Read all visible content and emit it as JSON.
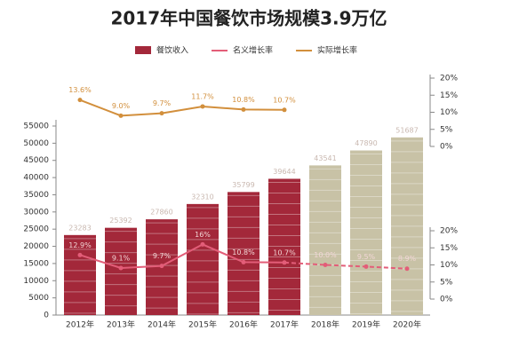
{
  "chart_data": {
    "type": "bar",
    "title": "2017年中国餐饮市场规模3.9万亿",
    "categories": [
      "2012年",
      "2013年",
      "2014年",
      "2015年",
      "2016年",
      "2017年",
      "2018年",
      "2019年",
      "2020年"
    ],
    "series": [
      {
        "name": "餐饮收入",
        "type": "bar",
        "axis": "y",
        "color": "#a3283a",
        "colors": [
          "#a3283a",
          "#a3283a",
          "#a3283a",
          "#a3283a",
          "#a3283a",
          "#a3283a",
          "#c8c2a6",
          "#c8c2a6",
          "#c8c2a6"
        ],
        "values": [
          23283,
          25392,
          27860,
          32310,
          35799,
          39644,
          43541,
          47890,
          51687
        ]
      },
      {
        "name": "名义增长率",
        "type": "line",
        "axis": "y3",
        "color": "#e35d78",
        "dash_from": 5,
        "values": [
          12.9,
          9.1,
          9.7,
          16,
          10.8,
          10.7,
          10.0,
          9.5,
          8.9
        ],
        "value_labels": [
          "12.9%",
          "9.1%",
          "9.7%",
          "16%",
          "10.8%",
          "10.7%",
          "10.0%",
          "9.5%",
          "8.9%"
        ]
      },
      {
        "name": "实际增长率",
        "type": "line",
        "axis": "y2",
        "color": "#d28f3c",
        "values": [
          13.6,
          9.0,
          9.7,
          11.7,
          10.8,
          10.7,
          null,
          null,
          null
        ],
        "value_labels": [
          "13.6%",
          "9.0%",
          "9.7%",
          "11.7%",
          "10.8%",
          "10.7%",
          null,
          null,
          null
        ]
      }
    ],
    "ylim": [
      0,
      55000
    ],
    "yticks": [
      0,
      5000,
      10000,
      15000,
      20000,
      25000,
      30000,
      35000,
      40000,
      45000,
      50000,
      55000
    ],
    "y2lim": [
      0,
      20
    ],
    "y2ticks": [
      {
        "value": 0,
        "label": "0%"
      },
      {
        "value": 5,
        "label": "5%"
      },
      {
        "value": 10,
        "label": "10%"
      },
      {
        "value": 15,
        "label": "15%"
      },
      {
        "value": 20,
        "label": "20%"
      }
    ],
    "y3lim": [
      0,
      20
    ],
    "y3ticks": [
      {
        "value": 0,
        "label": "0%"
      },
      {
        "value": 5,
        "label": "5%"
      },
      {
        "value": 10,
        "label": "10%"
      },
      {
        "value": 15,
        "label": "15%"
      },
      {
        "value": 20,
        "label": "20%"
      }
    ],
    "legend": "top"
  }
}
